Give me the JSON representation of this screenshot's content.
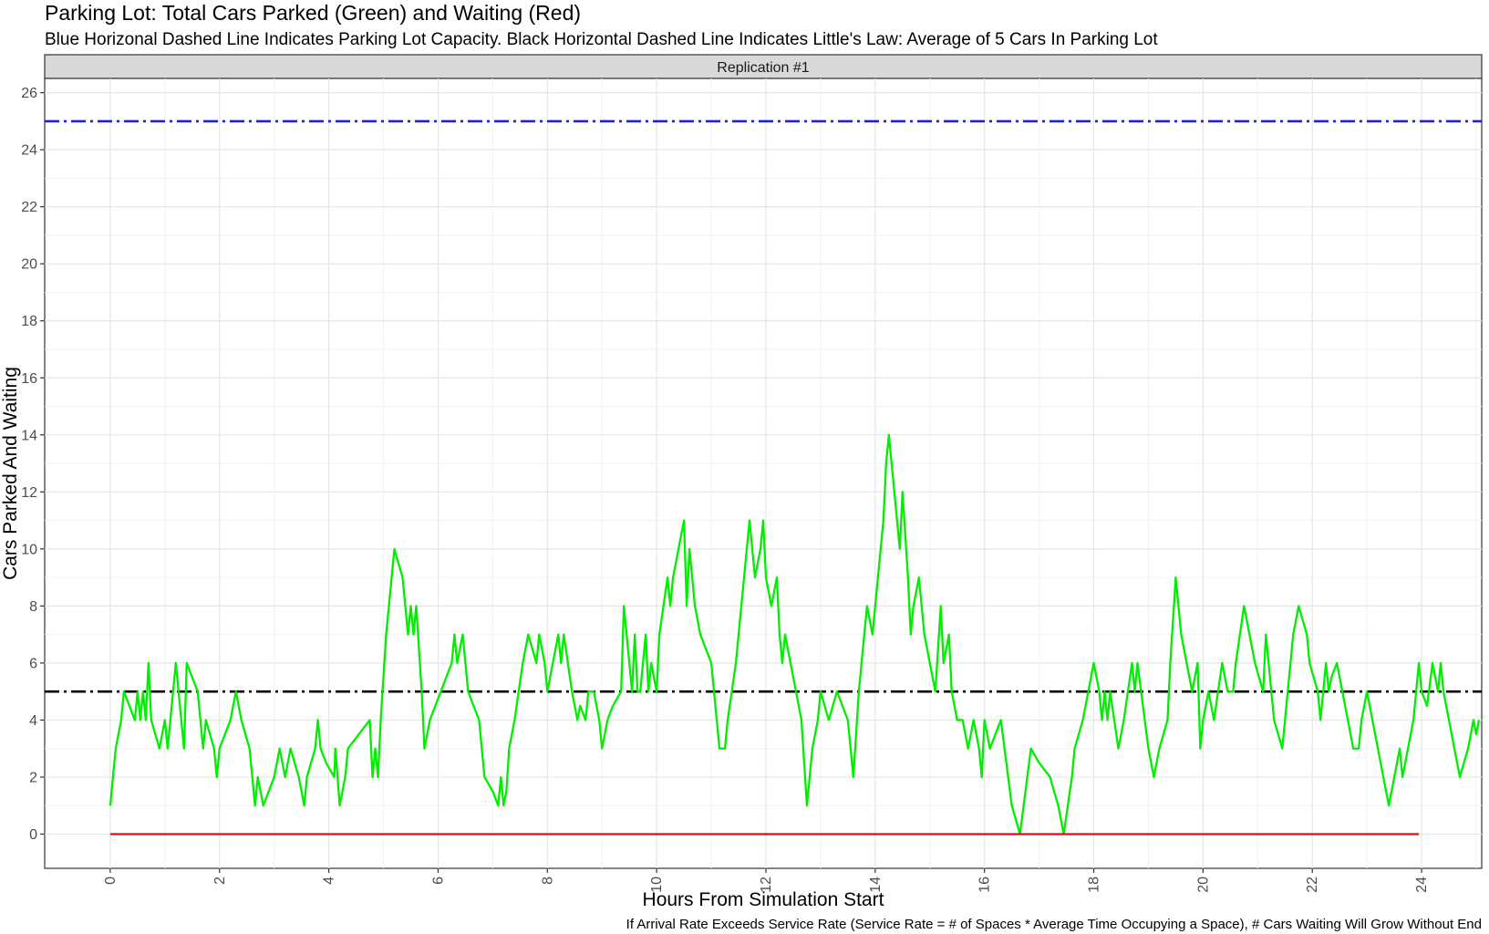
{
  "chart_data": {
    "type": "line",
    "title": "Parking Lot: Total Cars Parked (Green) and Waiting (Red)",
    "subtitle": "Blue Horizonal Dashed Line Indicates Parking Lot Capacity.  Black Horizontal Dashed Line Indicates Little's Law: Average of 5 Cars In Parking Lot",
    "facet_label": "Replication #1",
    "xlabel": "Hours From Simulation Start",
    "ylabel": "Cars Parked And Waiting",
    "caption": "If Arrival Rate Exceeds Service Rate (Service Rate = # of Spaces * Average Time Occupying a Space), # Cars Waiting Will Grow Without End",
    "xlim": [
      -1.2,
      25.1
    ],
    "ylim": [
      -1.2,
      26.5
    ],
    "x_ticks": [
      0,
      2,
      4,
      6,
      8,
      10,
      12,
      14,
      16,
      18,
      20,
      22,
      24
    ],
    "y_ticks": [
      0,
      2,
      4,
      6,
      8,
      10,
      12,
      14,
      16,
      18,
      20,
      22,
      24,
      26
    ],
    "grid": true,
    "reference_lines": [
      {
        "y": 25,
        "color": "#1f1fd6",
        "style": "dashdot",
        "meaning": "Parking Lot Capacity"
      },
      {
        "y": 5,
        "color": "#000000",
        "style": "dashdot",
        "meaning": "Little's Law average"
      }
    ],
    "series": [
      {
        "color": "#00ee00",
        "points": [
          [
            0,
            1
          ],
          [
            0.05,
            2
          ],
          [
            0.1,
            3
          ],
          [
            0.2,
            4
          ],
          [
            0.25,
            5
          ],
          [
            0.35,
            4.5
          ],
          [
            0.45,
            4
          ],
          [
            0.5,
            5
          ],
          [
            0.55,
            4
          ],
          [
            0.6,
            5
          ],
          [
            0.65,
            4
          ],
          [
            0.7,
            6
          ],
          [
            0.75,
            4
          ],
          [
            0.9,
            3
          ],
          [
            1.0,
            4
          ],
          [
            1.05,
            3
          ],
          [
            1.15,
            5
          ],
          [
            1.2,
            6
          ],
          [
            1.3,
            4
          ],
          [
            1.35,
            3
          ],
          [
            1.4,
            6
          ],
          [
            1.6,
            5
          ],
          [
            1.7,
            3
          ],
          [
            1.75,
            4
          ],
          [
            1.9,
            3
          ],
          [
            1.95,
            2
          ],
          [
            2.0,
            3
          ],
          [
            2.1,
            3.5
          ],
          [
            2.2,
            4
          ],
          [
            2.3,
            5
          ],
          [
            2.4,
            4
          ],
          [
            2.55,
            3
          ],
          [
            2.65,
            1
          ],
          [
            2.7,
            2
          ],
          [
            2.8,
            1
          ],
          [
            3.0,
            2
          ],
          [
            3.1,
            3
          ],
          [
            3.2,
            2
          ],
          [
            3.3,
            3
          ],
          [
            3.45,
            2
          ],
          [
            3.55,
            1
          ],
          [
            3.6,
            2
          ],
          [
            3.75,
            3
          ],
          [
            3.8,
            4
          ],
          [
            3.85,
            3
          ],
          [
            3.95,
            2.5
          ],
          [
            4.1,
            2
          ],
          [
            4.12,
            3
          ],
          [
            4.2,
            1
          ],
          [
            4.3,
            2
          ],
          [
            4.35,
            3
          ],
          [
            4.75,
            4
          ],
          [
            4.8,
            2
          ],
          [
            4.85,
            3
          ],
          [
            4.9,
            2
          ],
          [
            4.95,
            4
          ],
          [
            5.05,
            7
          ],
          [
            5.1,
            8
          ],
          [
            5.2,
            10
          ],
          [
            5.35,
            9
          ],
          [
            5.45,
            7
          ],
          [
            5.5,
            8
          ],
          [
            5.55,
            7
          ],
          [
            5.6,
            8
          ],
          [
            5.7,
            5
          ],
          [
            5.75,
            3
          ],
          [
            5.85,
            4
          ],
          [
            6.05,
            5
          ],
          [
            6.25,
            6
          ],
          [
            6.3,
            7
          ],
          [
            6.35,
            6
          ],
          [
            6.45,
            7
          ],
          [
            6.55,
            5
          ],
          [
            6.75,
            4
          ],
          [
            6.85,
            2
          ],
          [
            7.0,
            1.5
          ],
          [
            7.1,
            1
          ],
          [
            7.15,
            2
          ],
          [
            7.2,
            1
          ],
          [
            7.25,
            1.5
          ],
          [
            7.3,
            3
          ],
          [
            7.4,
            4
          ],
          [
            7.55,
            6
          ],
          [
            7.65,
            7
          ],
          [
            7.8,
            6
          ],
          [
            7.85,
            7
          ],
          [
            7.95,
            6
          ],
          [
            8.0,
            5
          ],
          [
            8.2,
            7
          ],
          [
            8.25,
            6
          ],
          [
            8.3,
            7
          ],
          [
            8.45,
            5
          ],
          [
            8.55,
            4
          ],
          [
            8.6,
            4.5
          ],
          [
            8.7,
            4
          ],
          [
            8.75,
            5
          ],
          [
            8.85,
            5
          ],
          [
            8.95,
            4
          ],
          [
            9.0,
            3
          ],
          [
            9.1,
            4
          ],
          [
            9.2,
            4.5
          ],
          [
            9.35,
            5
          ],
          [
            9.4,
            8
          ],
          [
            9.45,
            7
          ],
          [
            9.5,
            6
          ],
          [
            9.55,
            5
          ],
          [
            9.6,
            7
          ],
          [
            9.65,
            5
          ],
          [
            9.7,
            5
          ],
          [
            9.8,
            7
          ],
          [
            9.85,
            5
          ],
          [
            9.9,
            6
          ],
          [
            10.0,
            5
          ],
          [
            10.05,
            7
          ],
          [
            10.2,
            9
          ],
          [
            10.25,
            8
          ],
          [
            10.3,
            9
          ],
          [
            10.5,
            11
          ],
          [
            10.55,
            8
          ],
          [
            10.6,
            10
          ],
          [
            10.7,
            8
          ],
          [
            10.8,
            7
          ],
          [
            11.0,
            6
          ],
          [
            11.15,
            3
          ],
          [
            11.25,
            3
          ],
          [
            11.3,
            4
          ],
          [
            11.45,
            6
          ],
          [
            11.6,
            9
          ],
          [
            11.7,
            11
          ],
          [
            11.8,
            9
          ],
          [
            11.9,
            10
          ],
          [
            11.95,
            11
          ],
          [
            12.0,
            9
          ],
          [
            12.1,
            8
          ],
          [
            12.2,
            9
          ],
          [
            12.25,
            7
          ],
          [
            12.3,
            6
          ],
          [
            12.35,
            7
          ],
          [
            12.65,
            4
          ],
          [
            12.75,
            1
          ],
          [
            12.85,
            3
          ],
          [
            12.95,
            4
          ],
          [
            13.0,
            5
          ],
          [
            13.15,
            4
          ],
          [
            13.3,
            5
          ],
          [
            13.5,
            4
          ],
          [
            13.6,
            2
          ],
          [
            13.7,
            5
          ],
          [
            13.85,
            8
          ],
          [
            13.95,
            7
          ],
          [
            14.1,
            10
          ],
          [
            14.15,
            11
          ],
          [
            14.2,
            13
          ],
          [
            14.25,
            14
          ],
          [
            14.35,
            12
          ],
          [
            14.45,
            10
          ],
          [
            14.5,
            12
          ],
          [
            14.6,
            9
          ],
          [
            14.65,
            7
          ],
          [
            14.7,
            8
          ],
          [
            14.8,
            9
          ],
          [
            14.9,
            7
          ],
          [
            15.0,
            6
          ],
          [
            15.1,
            5
          ],
          [
            15.2,
            8
          ],
          [
            15.25,
            6
          ],
          [
            15.35,
            7
          ],
          [
            15.4,
            5
          ],
          [
            15.5,
            4
          ],
          [
            15.6,
            4
          ],
          [
            15.7,
            3
          ],
          [
            15.8,
            4
          ],
          [
            15.9,
            3
          ],
          [
            15.95,
            2
          ],
          [
            16.0,
            4
          ],
          [
            16.1,
            3
          ],
          [
            16.2,
            3.5
          ],
          [
            16.3,
            4
          ],
          [
            16.5,
            1
          ],
          [
            16.65,
            0
          ],
          [
            16.85,
            3
          ],
          [
            17.0,
            2.5
          ],
          [
            17.2,
            2
          ],
          [
            17.35,
            1
          ],
          [
            17.45,
            0
          ],
          [
            17.6,
            2
          ],
          [
            17.65,
            3
          ],
          [
            17.8,
            4
          ],
          [
            17.9,
            5
          ],
          [
            18.0,
            6
          ],
          [
            18.1,
            5
          ],
          [
            18.15,
            4
          ],
          [
            18.2,
            5
          ],
          [
            18.25,
            4
          ],
          [
            18.3,
            5
          ],
          [
            18.45,
            3
          ],
          [
            18.55,
            4
          ],
          [
            18.7,
            6
          ],
          [
            18.75,
            5
          ],
          [
            18.8,
            6
          ],
          [
            19.0,
            3
          ],
          [
            19.1,
            2
          ],
          [
            19.2,
            3
          ],
          [
            19.35,
            4
          ],
          [
            19.4,
            6
          ],
          [
            19.5,
            9
          ],
          [
            19.6,
            7
          ],
          [
            19.7,
            6
          ],
          [
            19.8,
            5
          ],
          [
            19.9,
            6
          ],
          [
            19.95,
            3
          ],
          [
            20.0,
            4
          ],
          [
            20.1,
            5
          ],
          [
            20.2,
            4
          ],
          [
            20.35,
            6
          ],
          [
            20.45,
            5
          ],
          [
            20.55,
            5
          ],
          [
            20.6,
            6
          ],
          [
            20.75,
            8
          ],
          [
            20.85,
            7
          ],
          [
            20.95,
            6
          ],
          [
            21.1,
            5
          ],
          [
            21.15,
            7
          ],
          [
            21.25,
            5
          ],
          [
            21.3,
            4
          ],
          [
            21.45,
            3
          ],
          [
            21.55,
            5
          ],
          [
            21.6,
            6
          ],
          [
            21.65,
            7
          ],
          [
            21.75,
            8
          ],
          [
            21.9,
            7
          ],
          [
            21.95,
            6
          ],
          [
            22.1,
            5
          ],
          [
            22.15,
            4
          ],
          [
            22.2,
            5
          ],
          [
            22.25,
            6
          ],
          [
            22.3,
            5
          ],
          [
            22.35,
            5.5
          ],
          [
            22.45,
            6
          ],
          [
            22.55,
            5
          ],
          [
            22.65,
            4
          ],
          [
            22.75,
            3
          ],
          [
            22.85,
            3
          ],
          [
            22.9,
            4
          ],
          [
            23.0,
            5
          ],
          [
            23.1,
            4
          ],
          [
            23.2,
            3
          ],
          [
            23.3,
            2
          ],
          [
            23.4,
            1
          ],
          [
            23.5,
            2
          ],
          [
            23.6,
            3
          ],
          [
            23.65,
            2
          ],
          [
            23.75,
            3
          ],
          [
            23.85,
            4
          ],
          [
            23.9,
            5
          ],
          [
            23.95,
            6
          ],
          [
            24.0,
            5
          ],
          [
            24.1,
            4.5
          ],
          [
            24.2,
            6
          ],
          [
            24.3,
            5
          ],
          [
            24.35,
            6
          ],
          [
            24.4,
            5
          ],
          [
            24.5,
            4
          ],
          [
            24.6,
            3
          ],
          [
            24.7,
            2
          ],
          [
            24.85,
            3
          ],
          [
            24.95,
            4
          ],
          [
            25.0,
            3.5
          ],
          [
            25.05,
            4
          ]
        ]
      },
      {
        "color": "#dd1111",
        "points": [
          [
            0,
            0
          ],
          [
            23.95,
            0
          ]
        ]
      }
    ]
  }
}
